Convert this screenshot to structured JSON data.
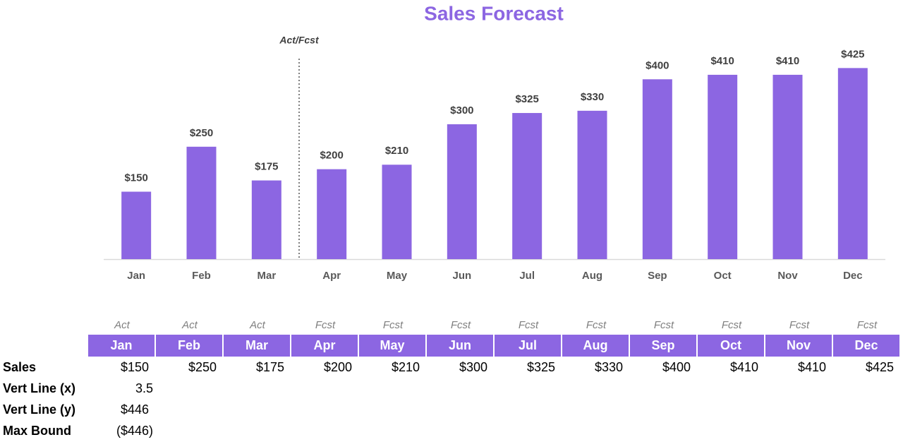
{
  "chart_data": {
    "type": "bar",
    "title": "Sales Forecast",
    "categories": [
      "Jan",
      "Feb",
      "Mar",
      "Apr",
      "May",
      "Jun",
      "Jul",
      "Aug",
      "Sep",
      "Oct",
      "Nov",
      "Dec"
    ],
    "values": [
      150,
      250,
      175,
      200,
      210,
      300,
      325,
      330,
      400,
      410,
      410,
      425
    ],
    "value_labels": [
      "$150",
      "$250",
      "$175",
      "$200",
      "$210",
      "$300",
      "$325",
      "$330",
      "$400",
      "$410",
      "$410",
      "$425"
    ],
    "color": "#8c66e2",
    "ylim": [
      0,
      446
    ],
    "vline": {
      "x": 3.5,
      "label": "Act/Fcst"
    }
  },
  "table": {
    "phases": [
      "Act",
      "Act",
      "Act",
      "Fcst",
      "Fcst",
      "Fcst",
      "Fcst",
      "Fcst",
      "Fcst",
      "Fcst",
      "Fcst",
      "Fcst"
    ],
    "months": [
      "Jan",
      "Feb",
      "Mar",
      "Apr",
      "May",
      "Jun",
      "Jul",
      "Aug",
      "Sep",
      "Oct",
      "Nov",
      "Dec"
    ],
    "rows": [
      {
        "label": "Sales",
        "cells": [
          "$150",
          "$250",
          "$175",
          "$200",
          "$210",
          "$300",
          "$325",
          "$330",
          "$400",
          "$410",
          "$410",
          "$425"
        ]
      },
      {
        "label": "Vert Line (x)",
        "cells": [
          "3.5"
        ]
      },
      {
        "label": "Vert Line (y)",
        "cells": [
          "$446"
        ]
      },
      {
        "label": "Max Bound",
        "cells": [
          "($446)"
        ]
      }
    ]
  }
}
